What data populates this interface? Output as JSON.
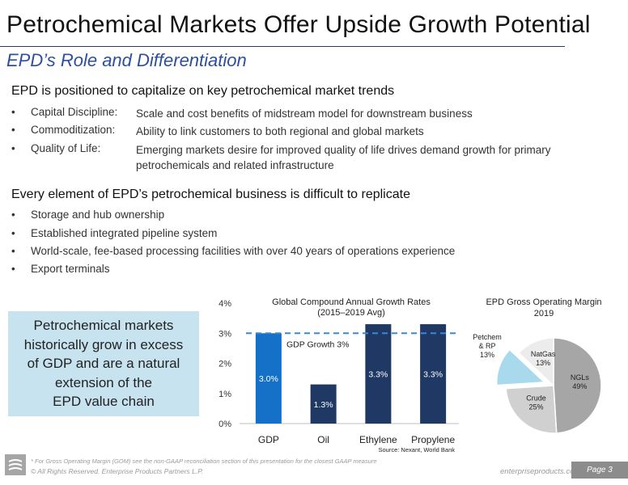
{
  "header": {
    "title": "Petrochemical Markets Offer Upside Growth Potential",
    "subtitle": "EPD’s Role and Differentiation"
  },
  "section1": {
    "heading": "EPD is positioned to capitalize on key petrochemical market trends",
    "bullets": [
      {
        "label": "Capital Discipline:",
        "text": "Scale and cost benefits of midstream model for downstream business",
        "text2": ""
      },
      {
        "label": "Commoditization:",
        "text": "Ability to link customers to both regional and global markets",
        "text2": ""
      },
      {
        "label": "Quality of Life:",
        "text": "Emerging markets desire for improved quality of life drives demand growth for primary",
        "text2": "petrochemicals and related infrastructure"
      }
    ]
  },
  "section2": {
    "heading": "Every element of EPD’s petrochemical business is difficult to replicate",
    "bullets": [
      "Storage and hub ownership",
      "Established integrated pipeline system",
      "World-scale, fee-based processing facilities with over 40 years of operations experience",
      "Export terminals"
    ]
  },
  "bullet_symbol": "•",
  "callout": {
    "text": "Petrochemical markets\nhistorically grow in excess\nof GDP and are a natural\nextension of the\nEPD value chain",
    "color": "#c6e3ef"
  },
  "chart_data": [
    {
      "type": "bar",
      "title": "Global Compound Annual Growth Rates",
      "subtitle": "(2015–2019 Avg)",
      "categories": [
        "GDP",
        "Oil",
        "Ethylene",
        "Propylene"
      ],
      "values": [
        3.0,
        1.3,
        3.3,
        3.3
      ],
      "value_labels": [
        "3.0%",
        "1.3%",
        "3.3%",
        "3.3%"
      ],
      "colors": [
        "#1570c8",
        "#1f3864",
        "#1f3864",
        "#1f3864"
      ],
      "yticks": [
        "0%",
        "1%",
        "2%",
        "3%",
        "4%"
      ],
      "ylim": [
        0,
        4
      ],
      "reference_line": {
        "value": 3.0,
        "label": "GDP Growth 3%",
        "color": "#3b86d6",
        "style": "dashed"
      },
      "source": "Source: Nexant, World Bank"
    },
    {
      "type": "pie",
      "title": "EPD Gross Operating Margin",
      "subtitle": "2019",
      "slices": [
        {
          "name": "NGLs",
          "value": 49,
          "label": "49%",
          "color": "#a6a6a6"
        },
        {
          "name": "Crude",
          "value": 25,
          "label": "25%",
          "color": "#d0d0d0"
        },
        {
          "name": "Petchem & RP",
          "value": 13,
          "label": "13%",
          "color": "#a9d9ec",
          "exploded": true
        },
        {
          "name": "NatGas",
          "value": 13,
          "label": "13%",
          "color": "#ececec"
        }
      ]
    }
  ],
  "footer": {
    "note": "* For Gross Operating Margin (GOM) see the non-GAAP reconciliation section of this presentation for the closest GAAP measure",
    "copyright": "© All Rights Reserved. Enterprise Products Partners L.P.",
    "website": "enterpriseproducts.com",
    "page": "Page 3",
    "page_bg": "#8c8c8c"
  }
}
